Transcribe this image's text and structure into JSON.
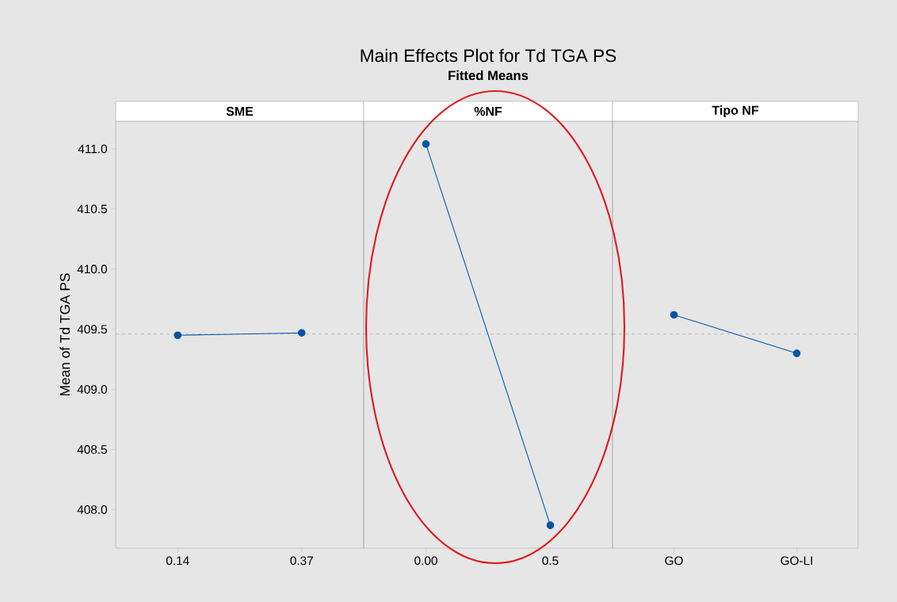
{
  "chart_data": [
    {
      "type": "line",
      "ylabel": "Mean of Td TGA PS",
      "xlabel": "SME",
      "categories": [
        "0.14",
        "0.37"
      ],
      "values": [
        409.45,
        409.47
      ],
      "color": "#0054a6",
      "marker": "circle",
      "line_style": "solid",
      "ylim": [
        407.68,
        411.23
      ],
      "yticks": [
        {
          "value": 408,
          "label": "408.0"
        },
        {
          "value": 408.5,
          "label": "408.5"
        },
        {
          "value": 409,
          "label": "409.0"
        },
        {
          "value": 409.5,
          "label": "409.5"
        },
        {
          "value": 410,
          "label": "410.0"
        },
        {
          "value": 410.5,
          "label": "410.5"
        },
        {
          "value": 411,
          "label": "411.0"
        }
      ],
      "ref_lines": [
        {
          "axis": "y",
          "value": 409.46,
          "color": "#999999",
          "line_style": "dashed"
        }
      ]
    },
    {
      "type": "line",
      "title": "Main Effects Plot for Td TGA PS",
      "subtitle": "Fitted Means",
      "xlabel": "%NF",
      "categories": [
        "0.00",
        "0.5"
      ],
      "values": [
        411.04,
        407.87
      ],
      "color": "#0054a6",
      "marker": "circle",
      "line_style": "solid",
      "ylim": [
        407.68,
        411.23
      ],
      "tick_labels": "x",
      "ref_lines": [
        {
          "axis": "y",
          "value": 409.46,
          "color": "#999999",
          "line_style": "dashed"
        }
      ]
    },
    {
      "type": "line",
      "xlabel": "Tipo NF",
      "categories": [
        "GO",
        "GO-LI"
      ],
      "values": [
        409.62,
        409.3
      ],
      "color": "#0054a6",
      "marker": "circle",
      "line_style": "solid",
      "ylim": [
        407.68,
        411.23
      ],
      "tick_labels": "x",
      "ref_lines": [
        {
          "axis": "y",
          "value": 409.46,
          "color": "#999999",
          "line_style": "dashed"
        }
      ]
    }
  ]
}
